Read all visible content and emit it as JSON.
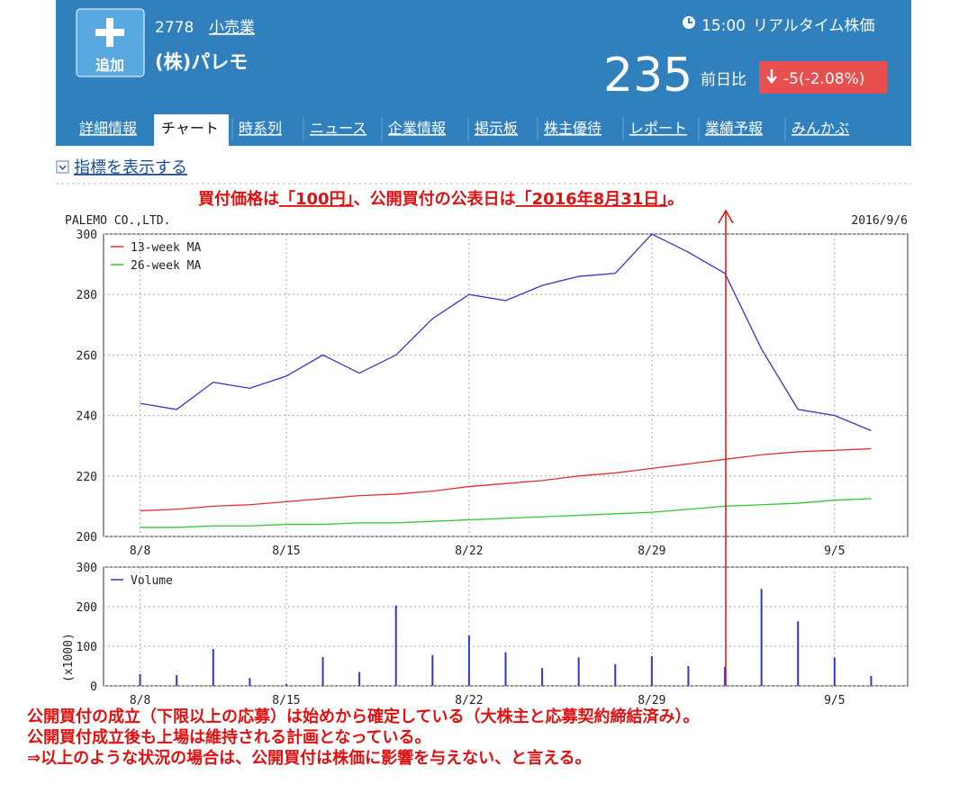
{
  "header": {
    "add": "追加",
    "code": "2778",
    "sector": "小売業",
    "name": "(株)パレモ",
    "time": "15:00",
    "realtime": "リアルタイム株価",
    "price": "235",
    "change_label": "前日比",
    "change": "-5",
    "change_pct": "(-2.08%)"
  },
  "tabs": [
    "詳細情報",
    "チャート",
    "時系列",
    "ニュース",
    "企業情報",
    "掲示板",
    "株主優待",
    "レポート",
    "業績予報",
    "みんかぶ"
  ],
  "indicator": "指標を表示する",
  "annotation": [
    "買付価格は",
    "「100円」",
    "、公開買付の公表日は",
    "「2016年8月31日」",
    "。"
  ],
  "chart_data": [
    {
      "type": "line",
      "title": "PALEMO CO.,LTD.",
      "date": "2016/9/6",
      "categories": [
        "8/8",
        null,
        null,
        null,
        "8/15",
        null,
        null,
        null,
        null,
        "8/22",
        null,
        null,
        null,
        null,
        "8/29",
        null,
        null,
        null,
        null,
        "9/5",
        null
      ],
      "series": [
        {
          "color": "#3535c8",
          "values": [
            244,
            242,
            251,
            249,
            253,
            260,
            254,
            260,
            272,
            280,
            278,
            283,
            286,
            287,
            300,
            294,
            287,
            262,
            242,
            240,
            235
          ]
        },
        {
          "name": "13-week MA",
          "color": "#e03030",
          "values": [
            208.5,
            209,
            210,
            210.5,
            211.5,
            212.5,
            213.5,
            214,
            215,
            216.5,
            217.5,
            218.5,
            220,
            221,
            222.5,
            224,
            225.5,
            227,
            228,
            228.5,
            229
          ]
        },
        {
          "name": "26-week MA",
          "color": "#30c830",
          "values": [
            203,
            203,
            203.5,
            203.5,
            204,
            204,
            204.5,
            204.5,
            205,
            205.5,
            206,
            206.5,
            207,
            207.5,
            208,
            209,
            210,
            210.5,
            211,
            212,
            212.5
          ]
        }
      ],
      "ylim": [
        200,
        300
      ],
      "yticks": [
        200,
        220,
        240,
        260,
        280,
        300
      ],
      "grid": true,
      "legend": "upper left"
    },
    {
      "type": "bar",
      "ylabel": "(x1000)",
      "categories": [
        "8/8",
        null,
        null,
        null,
        "8/15",
        null,
        null,
        null,
        null,
        "8/22",
        null,
        null,
        null,
        null,
        "8/29",
        null,
        null,
        null,
        null,
        "9/5",
        null
      ],
      "series": [
        {
          "name": "Volume",
          "color": "#3535c8",
          "values": [
            30,
            27,
            93,
            20,
            5,
            73,
            35,
            203,
            78,
            127,
            85,
            45,
            72,
            55,
            75,
            50,
            48,
            245,
            163,
            72,
            25
          ]
        }
      ],
      "ylim": [
        0,
        300
      ],
      "yticks": [
        0,
        100,
        200,
        300
      ],
      "grid": true,
      "legend": "upper left"
    }
  ],
  "notes": [
    "公開買付の成立（下限以上の応募）は始めから確定している（大株主と応募契約締結済み）。",
    "公開買付成立後も上場は維持される計画となっている。",
    "⇒以上のような状況の場合は、公開買付は株価に影響を与えない、と言える。"
  ]
}
